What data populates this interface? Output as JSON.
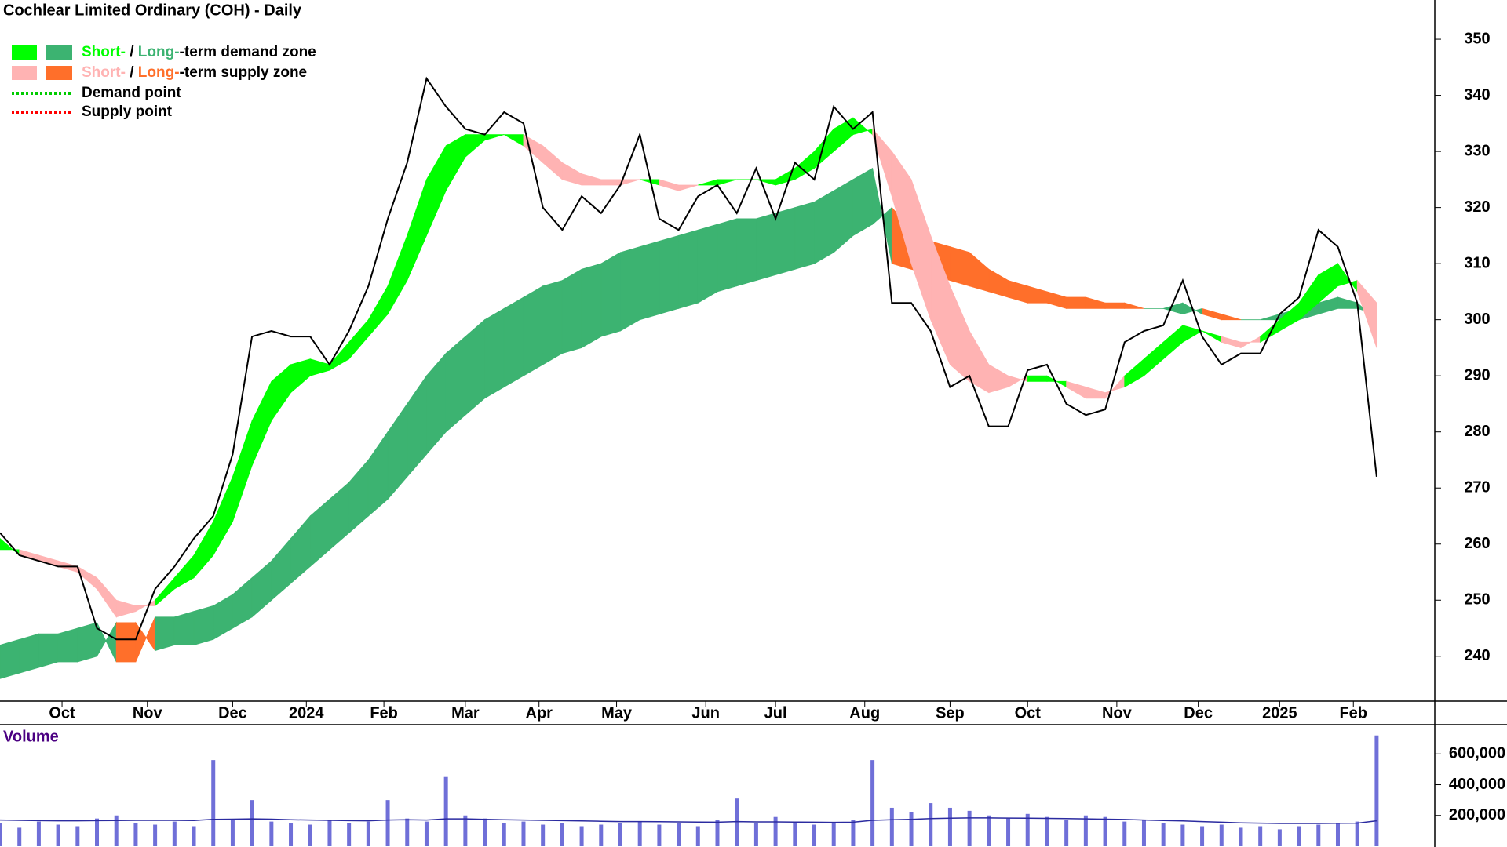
{
  "chart_data": [
    {
      "type": "line",
      "title": "Cochlear Limited Ordinary (COH) - Daily",
      "x": [
        0,
        5,
        10,
        15,
        20,
        25,
        30,
        35,
        40,
        45,
        50,
        55,
        60,
        65,
        70,
        75,
        80,
        85,
        90,
        95,
        100,
        105,
        110,
        115,
        120,
        125,
        130,
        135,
        140,
        145,
        150,
        155,
        160,
        165,
        170,
        175,
        180,
        185,
        190,
        195,
        200,
        205,
        210,
        215,
        220,
        225,
        230,
        235,
        240,
        245,
        250,
        255,
        260,
        265,
        270,
        275,
        280,
        285,
        290,
        295,
        300,
        305,
        310,
        315,
        320,
        325,
        330,
        335,
        340,
        345,
        350,
        355
      ],
      "xlim": [
        0,
        370
      ],
      "xticks": [
        {
          "value": 16,
          "label": "Oct"
        },
        {
          "value": 38,
          "label": "Nov"
        },
        {
          "value": 60,
          "label": "Dec"
        },
        {
          "value": 79,
          "label": "2024"
        },
        {
          "value": 99,
          "label": "Feb"
        },
        {
          "value": 120,
          "label": "Mar"
        },
        {
          "value": 139,
          "label": "Apr"
        },
        {
          "value": 159,
          "label": "May"
        },
        {
          "value": 182,
          "label": "Jun"
        },
        {
          "value": 200,
          "label": "Jul"
        },
        {
          "value": 223,
          "label": "Aug"
        },
        {
          "value": 245,
          "label": "Sep"
        },
        {
          "value": 265,
          "label": "Oct"
        },
        {
          "value": 288,
          "label": "Nov"
        },
        {
          "value": 309,
          "label": "Dec"
        },
        {
          "value": 330,
          "label": "2025"
        },
        {
          "value": 349,
          "label": "Feb"
        }
      ],
      "ylim": [
        232,
        357
      ],
      "yticks": [
        240,
        250,
        260,
        270,
        280,
        290,
        300,
        310,
        320,
        330,
        340,
        350
      ],
      "series": [
        {
          "color": "#000000",
          "values": [
            262,
            258,
            257,
            256,
            256,
            245,
            243,
            243,
            252,
            256,
            261,
            265,
            276,
            297,
            298,
            297,
            297,
            292,
            298,
            306,
            318,
            328,
            343,
            338,
            334,
            333,
            337,
            335,
            320,
            316,
            322,
            319,
            324,
            333,
            318,
            316,
            322,
            324,
            319,
            327,
            318,
            328,
            325,
            338,
            334,
            337,
            303,
            303,
            298,
            288,
            290,
            281,
            281,
            291,
            292,
            285,
            283,
            284,
            296,
            298,
            299,
            307,
            297,
            292,
            294,
            294,
            301,
            304,
            316,
            313,
            303,
            272
          ]
        }
      ],
      "zones": [
        {
          "demand_color": "#00ff00",
          "supply_color": "#ffb3b3",
          "fast": [
            261,
            258,
            257,
            256,
            255,
            252,
            247,
            248,
            250,
            254,
            258,
            264,
            272,
            282,
            289,
            292,
            293,
            292,
            296,
            300,
            306,
            315,
            325,
            331,
            333,
            333,
            333,
            331,
            328,
            325,
            324,
            324,
            324,
            325,
            324,
            323,
            324,
            325,
            325,
            325,
            325,
            327,
            330,
            334,
            336,
            333,
            322,
            310,
            300,
            292,
            289,
            287,
            288,
            290,
            290,
            288,
            286,
            286,
            290,
            293,
            296,
            299,
            298,
            296,
            295,
            297,
            300,
            303,
            308,
            310,
            305,
            295
          ],
          "slow": [
            259,
            259,
            258,
            257,
            256,
            254,
            250,
            249,
            249,
            252,
            254,
            258,
            264,
            274,
            282,
            287,
            290,
            291,
            293,
            297,
            301,
            307,
            315,
            323,
            329,
            332,
            333,
            333,
            331,
            328,
            326,
            325,
            325,
            325,
            325,
            324,
            324,
            324,
            325,
            325,
            324,
            325,
            327,
            330,
            333,
            334,
            330,
            325,
            315,
            306,
            298,
            292,
            290,
            289,
            289,
            289,
            288,
            287,
            288,
            290,
            293,
            296,
            298,
            297,
            296,
            296,
            298,
            300,
            303,
            306,
            307,
            303
          ]
        },
        {
          "demand_color": "#3cb371",
          "supply_color": "#ff6f2a",
          "fast": [
            242,
            243,
            244,
            244,
            245,
            246,
            239,
            239,
            247,
            247,
            248,
            249,
            251,
            254,
            257,
            261,
            265,
            268,
            271,
            275,
            280,
            285,
            290,
            294,
            297,
            300,
            302,
            304,
            306,
            307,
            309,
            310,
            312,
            313,
            314,
            315,
            316,
            317,
            318,
            318,
            319,
            320,
            321,
            323,
            325,
            327,
            310,
            309,
            308,
            307,
            306,
            305,
            304,
            303,
            303,
            302,
            302,
            302,
            302,
            302,
            302,
            303,
            301,
            300,
            300,
            300,
            301,
            302,
            303,
            304,
            303,
            300
          ],
          "slow": [
            236,
            237,
            238,
            239,
            239,
            240,
            246,
            246,
            241,
            242,
            242,
            243,
            245,
            247,
            250,
            253,
            256,
            259,
            262,
            265,
            268,
            272,
            276,
            280,
            283,
            286,
            288,
            290,
            292,
            294,
            295,
            297,
            298,
            300,
            301,
            302,
            303,
            305,
            306,
            307,
            308,
            309,
            310,
            312,
            315,
            317,
            320,
            316,
            314,
            313,
            312,
            309,
            307,
            306,
            305,
            304,
            304,
            303,
            303,
            302,
            302,
            301,
            302,
            301,
            300,
            300,
            300,
            300,
            301,
            302,
            302,
            301
          ]
        }
      ],
      "legend": {
        "position": "top-left",
        "entries": [
          {
            "kind": "demand",
            "parts": [
              "Short-",
              " / ",
              "Long-",
              "-term demand zone"
            ]
          },
          {
            "kind": "supply",
            "parts": [
              "Short-",
              " / ",
              "Long-",
              "-term supply zone"
            ]
          },
          {
            "kind": "point",
            "label": "Demand point",
            "color": "#00cc00"
          },
          {
            "kind": "point",
            "label": "Supply point",
            "color": "#ff0000"
          }
        ]
      }
    },
    {
      "type": "bar",
      "label": "Volume",
      "x": [
        0,
        5,
        10,
        15,
        20,
        25,
        30,
        35,
        40,
        45,
        50,
        55,
        60,
        65,
        70,
        75,
        80,
        85,
        90,
        95,
        100,
        105,
        110,
        115,
        120,
        125,
        130,
        135,
        140,
        145,
        150,
        155,
        160,
        165,
        170,
        175,
        180,
        185,
        190,
        195,
        200,
        205,
        210,
        215,
        220,
        225,
        230,
        235,
        240,
        245,
        250,
        255,
        260,
        265,
        270,
        275,
        280,
        285,
        290,
        295,
        300,
        305,
        310,
        315,
        320,
        325,
        330,
        335,
        340,
        345,
        350,
        355
      ],
      "xlim": [
        0,
        370
      ],
      "ylim": [
        0,
        790000
      ],
      "yticks": [
        {
          "value": 200000,
          "label": "200,000"
        },
        {
          "value": 400000,
          "label": "400,000"
        },
        {
          "value": 600000,
          "label": "600,000"
        }
      ],
      "series": [
        {
          "color": "#6f6fd8",
          "values": [
            150000,
            120000,
            160000,
            140000,
            130000,
            180000,
            200000,
            150000,
            140000,
            160000,
            130000,
            560000,
            170000,
            300000,
            160000,
            150000,
            140000,
            170000,
            150000,
            160000,
            300000,
            180000,
            160000,
            450000,
            200000,
            180000,
            150000,
            160000,
            140000,
            150000,
            130000,
            140000,
            150000,
            160000,
            140000,
            150000,
            130000,
            170000,
            310000,
            150000,
            190000,
            160000,
            140000,
            150000,
            170000,
            560000,
            250000,
            220000,
            280000,
            250000,
            230000,
            200000,
            180000,
            210000,
            190000,
            170000,
            200000,
            190000,
            160000,
            170000,
            150000,
            140000,
            130000,
            140000,
            120000,
            130000,
            110000,
            130000,
            140000,
            150000,
            160000,
            720000
          ]
        }
      ],
      "average": {
        "color": "#2b2ba0",
        "values": [
          170000,
          168000,
          166000,
          165000,
          165000,
          166000,
          167000,
          168000,
          168000,
          168000,
          167000,
          175000,
          176000,
          178000,
          176000,
          172000,
          170000,
          168000,
          166000,
          165000,
          170000,
          172000,
          170000,
          178000,
          178000,
          175000,
          172000,
          170000,
          168000,
          166000,
          164000,
          162000,
          160000,
          160000,
          159000,
          158000,
          157000,
          156000,
          160000,
          158000,
          158000,
          157000,
          156000,
          155000,
          156000,
          168000,
          172000,
          175000,
          180000,
          182000,
          184000,
          184000,
          183000,
          182000,
          181000,
          180000,
          178000,
          176000,
          174000,
          170000,
          167000,
          164000,
          160000,
          156000,
          152000,
          150000,
          148000,
          148000,
          148000,
          149000,
          150000,
          165000
        ]
      }
    }
  ]
}
